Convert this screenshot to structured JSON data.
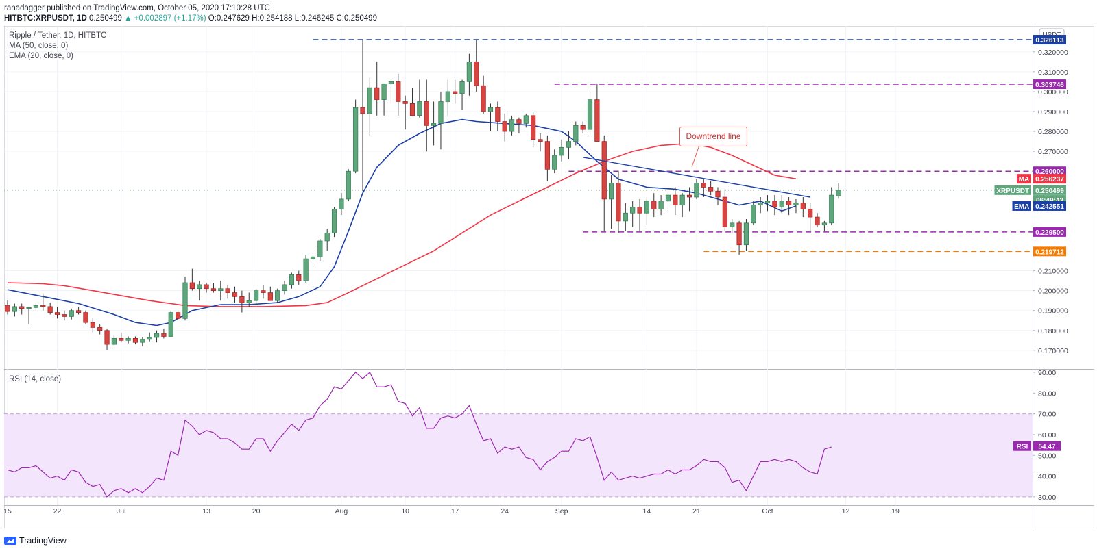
{
  "header": {
    "line1": "ranadagger published on TradingView.com, October 05, 2020 17:10:28 UTC",
    "symbol": "HITBTC:XRPUSDT, 1D",
    "price": "0.250499",
    "change": "▲ +0.002897 (+1.17%)",
    "ohlc": "O:0.247629 H:0.254188 L:0.246245 C:0.250499"
  },
  "legend": {
    "title": "Ripple / Tether, 1D, HITBTC",
    "ma": "MA (50, close, 0)",
    "ema": "EMA (20, close, 0)",
    "rsi": "RSI (14, close)"
  },
  "annotation": {
    "text": "Downtrend line"
  },
  "footer": {
    "brand": "TradingView"
  },
  "axis": {
    "currency": "USDT"
  },
  "price_labels": [
    {
      "text": "0.326113",
      "value": 0.326113,
      "color": "#1a3fa6"
    },
    {
      "text": "0.303746",
      "value": 0.303746,
      "color": "#9c27b0"
    },
    {
      "text": "0.260000",
      "value": 0.26,
      "color": "#9c27b0"
    },
    {
      "text": "0.256237",
      "value": 0.256237,
      "color": "#f23645",
      "tag": "MA"
    },
    {
      "text": "0.250499",
      "value": 0.250499,
      "color": "#5fa67d",
      "tag": "XRPUSDT"
    },
    {
      "text": "06:49:42",
      "value": 0.2456,
      "color": "#5fa67d"
    },
    {
      "text": "0.242551",
      "value": 0.242551,
      "color": "#1a3fa6",
      "tag": "EMA"
    },
    {
      "text": "0.229500",
      "value": 0.2295,
      "color": "#9c27b0"
    },
    {
      "text": "0.219712",
      "value": 0.219712,
      "color": "#f57c00"
    }
  ],
  "rsi_label": {
    "tag": "RSI",
    "text": "54.47",
    "value": 54.47
  },
  "chart_data": [
    {
      "type": "candlestick",
      "title": "Ripple / Tether, 1D, HITBTC",
      "ylim": [
        0.161,
        0.333
      ],
      "y_ticks": [
        "0.170000",
        "0.180000",
        "0.190000",
        "0.200000",
        "0.210000",
        "0.270000",
        "0.280000",
        "0.290000",
        "0.300000",
        "0.310000",
        "0.320000"
      ],
      "x_ticks": [
        {
          "i": 0,
          "label": "15"
        },
        {
          "i": 7,
          "label": "22"
        },
        {
          "i": 16,
          "label": "Jul"
        },
        {
          "i": 28,
          "label": "13"
        },
        {
          "i": 35,
          "label": "20"
        },
        {
          "i": 47,
          "label": "Aug"
        },
        {
          "i": 56,
          "label": "10"
        },
        {
          "i": 63,
          "label": "17"
        },
        {
          "i": 70,
          "label": "24"
        },
        {
          "i": 78,
          "label": "Sep"
        },
        {
          "i": 90,
          "label": "14"
        },
        {
          "i": 97,
          "label": "21"
        },
        {
          "i": 107,
          "label": "Oct"
        },
        {
          "i": 118,
          "label": "12"
        },
        {
          "i": 125,
          "label": "19"
        }
      ],
      "candles": [
        [
          0.1925,
          0.195,
          0.188,
          0.1895
        ],
        [
          0.1895,
          0.1935,
          0.187,
          0.192
        ],
        [
          0.192,
          0.1935,
          0.188,
          0.191
        ],
        [
          0.191,
          0.192,
          0.183,
          0.1915
        ],
        [
          0.1915,
          0.194,
          0.19,
          0.1925
        ],
        [
          0.1925,
          0.198,
          0.19,
          0.192
        ],
        [
          0.192,
          0.194,
          0.188,
          0.189
        ],
        [
          0.189,
          0.192,
          0.186,
          0.188
        ],
        [
          0.188,
          0.19,
          0.185,
          0.187
        ],
        [
          0.187,
          0.191,
          0.1855,
          0.19
        ],
        [
          0.19,
          0.192,
          0.188,
          0.189
        ],
        [
          0.189,
          0.19,
          0.183,
          0.184
        ],
        [
          0.184,
          0.186,
          0.179,
          0.1815
        ],
        [
          0.1815,
          0.183,
          0.178,
          0.18
        ],
        [
          0.18,
          0.181,
          0.17,
          0.173
        ],
        [
          0.173,
          0.178,
          0.172,
          0.176
        ],
        [
          0.176,
          0.179,
          0.174,
          0.175
        ],
        [
          0.175,
          0.177,
          0.1735,
          0.176
        ],
        [
          0.176,
          0.177,
          0.173,
          0.174
        ],
        [
          0.174,
          0.1765,
          0.172,
          0.1755
        ],
        [
          0.1755,
          0.179,
          0.1745,
          0.1765
        ],
        [
          0.1765,
          0.18,
          0.174,
          0.1785
        ],
        [
          0.1785,
          0.181,
          0.176,
          0.177
        ],
        [
          0.177,
          0.19,
          0.177,
          0.189
        ],
        [
          0.189,
          0.19,
          0.185,
          0.186
        ],
        [
          0.186,
          0.207,
          0.185,
          0.204
        ],
        [
          0.204,
          0.211,
          0.2,
          0.201
        ],
        [
          0.201,
          0.205,
          0.195,
          0.203
        ],
        [
          0.203,
          0.204,
          0.199,
          0.201
        ],
        [
          0.201,
          0.204,
          0.199,
          0.2
        ],
        [
          0.2,
          0.205,
          0.195,
          0.201
        ],
        [
          0.201,
          0.203,
          0.196,
          0.199
        ],
        [
          0.199,
          0.202,
          0.194,
          0.197
        ],
        [
          0.197,
          0.2,
          0.189,
          0.194
        ],
        [
          0.194,
          0.199,
          0.192,
          0.195
        ],
        [
          0.195,
          0.201,
          0.193,
          0.2
        ],
        [
          0.2,
          0.203,
          0.196,
          0.199
        ],
        [
          0.199,
          0.202,
          0.195,
          0.195
        ],
        [
          0.195,
          0.201,
          0.194,
          0.2
        ],
        [
          0.2,
          0.205,
          0.198,
          0.203
        ],
        [
          0.203,
          0.209,
          0.201,
          0.208
        ],
        [
          0.208,
          0.21,
          0.203,
          0.205
        ],
        [
          0.205,
          0.218,
          0.204,
          0.216
        ],
        [
          0.216,
          0.22,
          0.212,
          0.217
        ],
        [
          0.217,
          0.226,
          0.215,
          0.225
        ],
        [
          0.225,
          0.231,
          0.22,
          0.229
        ],
        [
          0.229,
          0.242,
          0.227,
          0.241
        ],
        [
          0.241,
          0.249,
          0.238,
          0.246
        ],
        [
          0.246,
          0.261,
          0.245,
          0.26
        ],
        [
          0.26,
          0.296,
          0.259,
          0.292
        ],
        [
          0.292,
          0.326,
          0.25,
          0.289
        ],
        [
          0.289,
          0.307,
          0.278,
          0.302
        ],
        [
          0.302,
          0.315,
          0.288,
          0.296
        ],
        [
          0.296,
          0.304,
          0.288,
          0.304
        ],
        [
          0.304,
          0.306,
          0.294,
          0.305
        ],
        [
          0.305,
          0.309,
          0.288,
          0.295
        ],
        [
          0.295,
          0.298,
          0.281,
          0.294
        ],
        [
          0.294,
          0.302,
          0.288,
          0.288
        ],
        [
          0.288,
          0.306,
          0.287,
          0.295
        ],
        [
          0.295,
          0.306,
          0.27,
          0.283
        ],
        [
          0.283,
          0.295,
          0.273,
          0.284
        ],
        [
          0.284,
          0.3,
          0.271,
          0.295
        ],
        [
          0.295,
          0.306,
          0.288,
          0.3
        ],
        [
          0.3,
          0.306,
          0.294,
          0.299
        ],
        [
          0.299,
          0.306,
          0.291,
          0.305
        ],
        [
          0.305,
          0.319,
          0.298,
          0.315
        ],
        [
          0.315,
          0.326,
          0.3,
          0.303
        ],
        [
          0.303,
          0.308,
          0.289,
          0.29
        ],
        [
          0.29,
          0.294,
          0.28,
          0.292
        ],
        [
          0.292,
          0.295,
          0.28,
          0.285
        ],
        [
          0.285,
          0.289,
          0.275,
          0.28
        ],
        [
          0.28,
          0.288,
          0.278,
          0.286
        ],
        [
          0.286,
          0.287,
          0.279,
          0.284
        ],
        [
          0.284,
          0.289,
          0.282,
          0.288
        ],
        [
          0.288,
          0.29,
          0.272,
          0.276
        ],
        [
          0.276,
          0.279,
          0.27,
          0.275
        ],
        [
          0.275,
          0.278,
          0.255,
          0.261
        ],
        [
          0.261,
          0.271,
          0.259,
          0.268
        ],
        [
          0.268,
          0.276,
          0.265,
          0.272
        ],
        [
          0.272,
          0.28,
          0.266,
          0.275
        ],
        [
          0.275,
          0.285,
          0.273,
          0.283
        ],
        [
          0.283,
          0.285,
          0.279,
          0.281
        ],
        [
          0.281,
          0.3,
          0.278,
          0.296
        ],
        [
          0.296,
          0.304,
          0.275,
          0.275
        ],
        [
          0.275,
          0.278,
          0.23,
          0.246
        ],
        [
          0.246,
          0.258,
          0.231,
          0.254
        ],
        [
          0.254,
          0.26,
          0.229,
          0.235
        ],
        [
          0.235,
          0.244,
          0.23,
          0.239
        ],
        [
          0.239,
          0.245,
          0.232,
          0.242
        ],
        [
          0.242,
          0.246,
          0.23,
          0.239
        ],
        [
          0.239,
          0.247,
          0.233,
          0.245
        ],
        [
          0.245,
          0.249,
          0.237,
          0.241
        ],
        [
          0.241,
          0.248,
          0.238,
          0.245
        ],
        [
          0.245,
          0.251,
          0.239,
          0.248
        ],
        [
          0.248,
          0.252,
          0.238,
          0.243
        ],
        [
          0.243,
          0.249,
          0.237,
          0.248
        ],
        [
          0.248,
          0.252,
          0.24,
          0.247
        ],
        [
          0.247,
          0.256,
          0.246,
          0.254
        ],
        [
          0.254,
          0.256,
          0.247,
          0.252
        ],
        [
          0.252,
          0.255,
          0.248,
          0.25
        ],
        [
          0.25,
          0.252,
          0.243,
          0.247
        ],
        [
          0.247,
          0.251,
          0.23,
          0.232
        ],
        [
          0.232,
          0.236,
          0.229,
          0.234
        ],
        [
          0.234,
          0.235,
          0.218,
          0.223
        ],
        [
          0.223,
          0.236,
          0.22,
          0.234
        ],
        [
          0.234,
          0.245,
          0.233,
          0.243
        ],
        [
          0.243,
          0.247,
          0.239,
          0.244
        ],
        [
          0.244,
          0.248,
          0.24,
          0.245
        ],
        [
          0.245,
          0.248,
          0.238,
          0.242
        ],
        [
          0.242,
          0.248,
          0.239,
          0.245
        ],
        [
          0.245,
          0.247,
          0.238,
          0.243
        ],
        [
          0.243,
          0.246,
          0.239,
          0.244
        ],
        [
          0.244,
          0.247,
          0.237,
          0.241
        ],
        [
          0.241,
          0.244,
          0.23,
          0.237
        ],
        [
          0.237,
          0.239,
          0.232,
          0.233
        ],
        [
          0.233,
          0.235,
          0.23,
          0.234
        ],
        [
          0.234,
          0.252,
          0.233,
          0.248
        ],
        [
          0.2476,
          0.2542,
          0.2462,
          0.2505
        ]
      ],
      "ma50": [
        [
          0,
          0.204
        ],
        [
          5,
          0.2035
        ],
        [
          8,
          0.2025
        ],
        [
          12,
          0.2
        ],
        [
          16,
          0.1975
        ],
        [
          20,
          0.195
        ],
        [
          25,
          0.1925
        ],
        [
          30,
          0.192
        ],
        [
          36,
          0.192
        ],
        [
          42,
          0.1925
        ],
        [
          45,
          0.194
        ],
        [
          48,
          0.199
        ],
        [
          52,
          0.206
        ],
        [
          56,
          0.213
        ],
        [
          60,
          0.22
        ],
        [
          64,
          0.229
        ],
        [
          68,
          0.238
        ],
        [
          72,
          0.245
        ],
        [
          76,
          0.252
        ],
        [
          80,
          0.259
        ],
        [
          84,
          0.265
        ],
        [
          88,
          0.27
        ],
        [
          92,
          0.273
        ],
        [
          96,
          0.274
        ],
        [
          99,
          0.272
        ],
        [
          102,
          0.268
        ],
        [
          105,
          0.263
        ],
        [
          108,
          0.258
        ],
        [
          111,
          0.2562
        ]
      ],
      "ema20": [
        [
          0,
          0.2005
        ],
        [
          5,
          0.197
        ],
        [
          10,
          0.1935
        ],
        [
          15,
          0.188
        ],
        [
          18,
          0.184
        ],
        [
          21,
          0.1825
        ],
        [
          23,
          0.184
        ],
        [
          26,
          0.19
        ],
        [
          30,
          0.193
        ],
        [
          34,
          0.193
        ],
        [
          38,
          0.194
        ],
        [
          41,
          0.197
        ],
        [
          44,
          0.202
        ],
        [
          46,
          0.212
        ],
        [
          48,
          0.23
        ],
        [
          50,
          0.249
        ],
        [
          52,
          0.262
        ],
        [
          55,
          0.273
        ],
        [
          58,
          0.279
        ],
        [
          61,
          0.284
        ],
        [
          64,
          0.286
        ],
        [
          66,
          0.285
        ],
        [
          70,
          0.284
        ],
        [
          74,
          0.283
        ],
        [
          78,
          0.28
        ],
        [
          80,
          0.275
        ],
        [
          83,
          0.265
        ],
        [
          86,
          0.256
        ],
        [
          90,
          0.252
        ],
        [
          94,
          0.251
        ],
        [
          97,
          0.249
        ],
        [
          100,
          0.246
        ],
        [
          103,
          0.243
        ],
        [
          106,
          0.245
        ],
        [
          109,
          0.24
        ],
        [
          111,
          0.2426
        ]
      ],
      "trendlines": [
        {
          "label": "0.326113",
          "value": 0.326113,
          "from": 43,
          "color": "#1a3fa6"
        },
        {
          "label": "0.303746",
          "value": 0.303746,
          "from": 77,
          "color": "#9c27b0"
        },
        {
          "label": "0.260000",
          "value": 0.26,
          "from": 79,
          "color": "#9c27b0"
        },
        {
          "label": "0.229500",
          "value": 0.2295,
          "from": 81,
          "color": "#9c27b0"
        },
        {
          "label": "0.219712",
          "value": 0.219712,
          "from": 98,
          "color": "#f57c00"
        }
      ],
      "downtrend_line": {
        "from": [
          81,
          0.267
        ],
        "to": [
          113,
          0.247
        ]
      }
    },
    {
      "type": "line",
      "title": "RSI (14, close)",
      "ylim": [
        26,
        91
      ],
      "y_ticks": [
        "30.00",
        "40.00",
        "50.00",
        "60.00",
        "70.00",
        "80.00",
        "90.00"
      ],
      "band": [
        30,
        70
      ],
      "values": [
        43,
        42,
        44,
        44,
        45,
        42,
        39,
        40,
        38,
        43,
        42,
        37,
        35,
        36,
        30,
        33,
        34,
        32,
        34,
        32,
        35,
        39,
        38,
        52,
        50,
        67,
        64,
        60,
        62,
        61,
        58,
        58,
        56,
        53,
        53,
        58,
        58,
        52,
        57,
        61,
        65,
        62,
        67,
        68,
        74,
        77,
        83,
        82,
        86,
        90,
        87,
        90,
        83,
        83,
        84,
        76,
        75,
        69,
        73,
        63,
        63,
        68,
        69,
        68,
        70,
        74,
        65,
        57,
        58,
        51,
        54,
        53,
        54,
        49,
        48,
        43,
        47,
        49,
        52,
        52,
        58,
        57,
        59,
        49,
        38,
        42,
        38,
        39,
        40,
        39,
        40,
        41,
        41,
        43,
        41,
        43,
        43,
        45,
        48,
        47,
        47,
        44,
        37,
        38,
        33,
        40,
        47,
        47,
        48,
        47,
        48,
        47,
        44,
        42,
        41,
        53,
        54
      ]
    }
  ]
}
